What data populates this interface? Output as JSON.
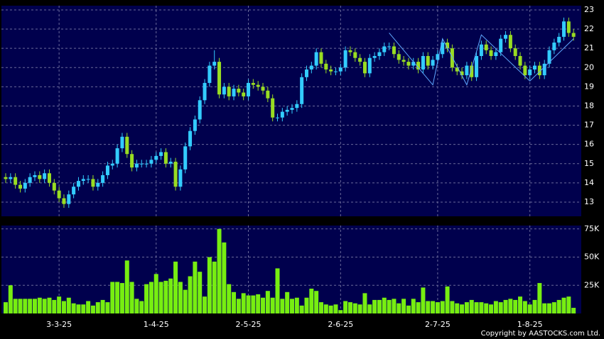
{
  "chart_data": {
    "type": "candlestick",
    "categories": [
      null,
      null,
      null,
      null,
      null,
      null,
      null,
      null,
      null,
      null,
      null,
      "3-3-25",
      null,
      null,
      null,
      null,
      null,
      null,
      null,
      null,
      null,
      null,
      null,
      null,
      null,
      null,
      null,
      null,
      null,
      null,
      null,
      "1-4-25",
      null,
      null,
      null,
      null,
      null,
      null,
      null,
      null,
      null,
      null,
      null,
      null,
      null,
      null,
      null,
      null,
      null,
      null,
      "2-5-25",
      null,
      null,
      null,
      null,
      null,
      null,
      null,
      null,
      null,
      null,
      null,
      null,
      null,
      null,
      null,
      null,
      null,
      null,
      "2-6-25",
      null,
      null,
      null,
      null,
      null,
      null,
      null,
      null,
      null,
      null,
      null,
      null,
      null,
      null,
      null,
      null,
      null,
      null,
      null,
      "2-7-25",
      null,
      null,
      null,
      null,
      null,
      null,
      null,
      null,
      null,
      null,
      null,
      null,
      null,
      null,
      null,
      null,
      null,
      null,
      "1-8-25",
      null,
      null,
      null,
      null,
      null,
      null,
      null,
      null,
      null
    ],
    "open": [
      14.3,
      14.2,
      14.3,
      13.9,
      13.7,
      14.0,
      14.3,
      14.4,
      14.2,
      14.5,
      14.0,
      13.6,
      13.2,
      12.9,
      13.4,
      13.8,
      14.1,
      14.2,
      14.2,
      13.8,
      14.0,
      14.4,
      14.9,
      15.0,
      15.8,
      16.4,
      15.5,
      14.8,
      15.0,
      15.0,
      15.0,
      15.2,
      15.4,
      15.6,
      15.0,
      15.1,
      13.8,
      14.7,
      15.9,
      16.7,
      17.3,
      18.3,
      19.2,
      20.1,
      20.3,
      18.6,
      19.0,
      18.5,
      18.9,
      18.7,
      18.5,
      19.2,
      19.1,
      19.0,
      18.8,
      18.4,
      17.4,
      17.4,
      17.7,
      17.8,
      17.9,
      18.1,
      19.5,
      19.9,
      20.1,
      20.8,
      20.2,
      19.9,
      19.8,
      19.8,
      20.0,
      20.9,
      20.8,
      20.5,
      20.3,
      19.7,
      20.5,
      20.6,
      20.8,
      21.1,
      21.1,
      20.7,
      20.4,
      20.3,
      20.1,
      20.3,
      19.9,
      20.6,
      20.1,
      20.4,
      20.7,
      21.3,
      21.0,
      20.0,
      19.8,
      19.6,
      20.1,
      19.5,
      20.6,
      21.2,
      20.9,
      20.6,
      20.8,
      21.5,
      21.7,
      21.0,
      20.6,
      20.1,
      19.6,
      19.9,
      20.1,
      19.6,
      20.2,
      20.9,
      21.3,
      21.6,
      22.4,
      21.8
    ],
    "high": [
      14.5,
      14.5,
      14.5,
      14.1,
      14.2,
      14.5,
      14.6,
      14.6,
      14.7,
      14.7,
      14.2,
      13.8,
      13.4,
      13.6,
      14.0,
      14.3,
      14.4,
      14.4,
      14.4,
      14.2,
      14.6,
      15.1,
      15.2,
      16.0,
      16.6,
      16.6,
      15.7,
      15.2,
      15.2,
      15.2,
      15.4,
      15.6,
      15.8,
      15.8,
      15.3,
      15.3,
      14.9,
      16.1,
      16.9,
      17.5,
      18.5,
      19.4,
      20.3,
      20.9,
      20.5,
      19.2,
      19.2,
      19.1,
      19.1,
      18.9,
      19.4,
      19.4,
      19.3,
      19.2,
      19.0,
      18.6,
      17.6,
      17.9,
      18.0,
      18.1,
      18.3,
      19.7,
      20.1,
      20.3,
      21.0,
      21.0,
      20.4,
      20.1,
      20.0,
      20.2,
      21.1,
      21.1,
      21.0,
      20.7,
      20.5,
      20.7,
      20.8,
      21.0,
      21.3,
      21.3,
      21.3,
      20.9,
      20.6,
      20.5,
      20.5,
      20.5,
      20.8,
      20.8,
      20.6,
      20.9,
      21.5,
      21.5,
      21.2,
      20.2,
      20.0,
      20.3,
      20.3,
      20.8,
      21.4,
      21.4,
      21.1,
      21.0,
      21.7,
      21.9,
      21.9,
      21.2,
      20.8,
      20.3,
      20.1,
      20.3,
      20.3,
      20.4,
      21.1,
      21.5,
      21.8,
      22.6,
      22.6,
      22.0
    ],
    "low": [
      14.0,
      14.0,
      13.7,
      13.5,
      13.5,
      13.8,
      14.1,
      14.0,
      14.0,
      13.8,
      13.4,
      13.0,
      12.7,
      12.7,
      13.2,
      13.6,
      13.9,
      14.0,
      13.6,
      13.6,
      13.8,
      14.2,
      14.7,
      14.8,
      15.6,
      15.3,
      14.6,
      14.6,
      14.8,
      14.8,
      14.8,
      15.0,
      15.2,
      14.8,
      14.8,
      13.6,
      13.6,
      14.5,
      15.7,
      16.5,
      17.1,
      18.1,
      19.0,
      19.9,
      18.4,
      18.4,
      18.3,
      18.3,
      18.5,
      18.3,
      18.3,
      18.9,
      18.8,
      18.6,
      18.2,
      17.2,
      17.2,
      17.2,
      17.5,
      17.6,
      17.7,
      17.9,
      19.3,
      19.7,
      19.9,
      20.0,
      19.7,
      19.6,
      19.6,
      19.6,
      19.8,
      20.6,
      20.3,
      20.1,
      19.5,
      19.5,
      20.3,
      20.4,
      20.6,
      20.9,
      20.5,
      20.2,
      20.1,
      19.9,
      19.9,
      19.7,
      19.7,
      19.9,
      19.9,
      20.2,
      20.5,
      20.8,
      19.8,
      19.6,
      19.4,
      19.4,
      19.3,
      19.3,
      20.4,
      20.7,
      20.4,
      20.4,
      20.6,
      21.3,
      20.8,
      20.4,
      19.9,
      19.4,
      19.4,
      19.7,
      19.4,
      19.4,
      20.0,
      20.7,
      21.1,
      21.4,
      21.6,
      21.4
    ],
    "close": [
      14.2,
      14.3,
      13.9,
      13.7,
      14.0,
      14.3,
      14.4,
      14.2,
      14.5,
      14.0,
      13.6,
      13.2,
      12.9,
      13.4,
      13.8,
      14.1,
      14.2,
      14.2,
      13.8,
      14.0,
      14.4,
      14.9,
      15.0,
      15.8,
      16.4,
      15.5,
      14.8,
      15.0,
      15.0,
      15.0,
      15.2,
      15.4,
      15.6,
      15.0,
      15.1,
      13.8,
      14.7,
      15.9,
      16.7,
      17.3,
      18.3,
      19.2,
      20.1,
      20.3,
      18.6,
      19.0,
      18.5,
      18.9,
      18.7,
      18.5,
      19.2,
      19.1,
      19.0,
      18.8,
      18.4,
      17.4,
      17.4,
      17.7,
      17.8,
      17.9,
      18.1,
      19.5,
      19.9,
      20.1,
      20.8,
      20.2,
      19.9,
      19.8,
      19.8,
      20.0,
      20.9,
      20.8,
      20.5,
      20.3,
      19.7,
      20.5,
      20.6,
      20.8,
      21.1,
      21.1,
      20.7,
      20.4,
      20.3,
      20.1,
      20.3,
      19.9,
      20.6,
      20.1,
      20.4,
      20.7,
      21.3,
      21.0,
      20.0,
      19.8,
      19.6,
      20.1,
      19.5,
      20.6,
      21.2,
      20.9,
      20.6,
      20.8,
      21.5,
      21.7,
      21.0,
      20.6,
      20.1,
      19.6,
      19.9,
      20.1,
      19.6,
      20.2,
      20.9,
      21.3,
      21.6,
      22.4,
      21.8,
      21.6
    ],
    "up_color": "#33ccff",
    "down_color": "#99dd22",
    "ylim": [
      12.26,
      23.22
    ],
    "yticks": [
      13,
      14,
      15,
      16,
      17,
      18,
      19,
      20,
      21,
      22,
      23
    ],
    "grid": true,
    "overlay": {
      "color": "#5fa8ff",
      "x": [
        79,
        88,
        90,
        95,
        98,
        108,
        117
      ],
      "values": [
        21.8,
        19.1,
        21.5,
        19.1,
        21.7,
        19.3,
        21.5
      ]
    },
    "volume": {
      "color": "#77ee11",
      "values": [
        10000,
        25000,
        13000,
        13000,
        13000,
        13000,
        13000,
        14000,
        13000,
        14000,
        12000,
        15000,
        11000,
        14000,
        9000,
        8000,
        8000,
        11000,
        7000,
        10000,
        12000,
        10000,
        28000,
        28000,
        27000,
        47000,
        28000,
        13000,
        11000,
        26000,
        28000,
        35000,
        28000,
        29000,
        31000,
        46000,
        28000,
        21000,
        33000,
        46000,
        37000,
        15000,
        50000,
        46000,
        75000,
        63000,
        26000,
        19000,
        13000,
        18000,
        16000,
        16000,
        17000,
        14000,
        20000,
        14000,
        40000,
        13000,
        19000,
        13000,
        14000,
        7000,
        14000,
        22000,
        20000,
        10000,
        8000,
        7000,
        8000,
        3000,
        11000,
        10000,
        9000,
        8000,
        18000,
        8000,
        12000,
        12000,
        14000,
        12000,
        13000,
        9000,
        13000,
        7000,
        13000,
        10000,
        23000,
        11000,
        11000,
        10000,
        11000,
        24000,
        11000,
        9000,
        8000,
        10000,
        12000,
        10000,
        10000,
        9000,
        8000,
        11000,
        10000,
        12000,
        13000,
        12000,
        15000,
        11000,
        8000,
        12000,
        27000,
        9000,
        9000,
        10000,
        12000,
        14000,
        15000,
        5000
      ],
      "ylim": [
        0,
        78000
      ],
      "yticks": [
        {
          "value": 25000,
          "label": "25K"
        },
        {
          "value": 50000,
          "label": "50K"
        },
        {
          "value": 75000,
          "label": "75K"
        }
      ]
    },
    "copyright": "Copyright by AASTOCKS.com Ltd."
  }
}
